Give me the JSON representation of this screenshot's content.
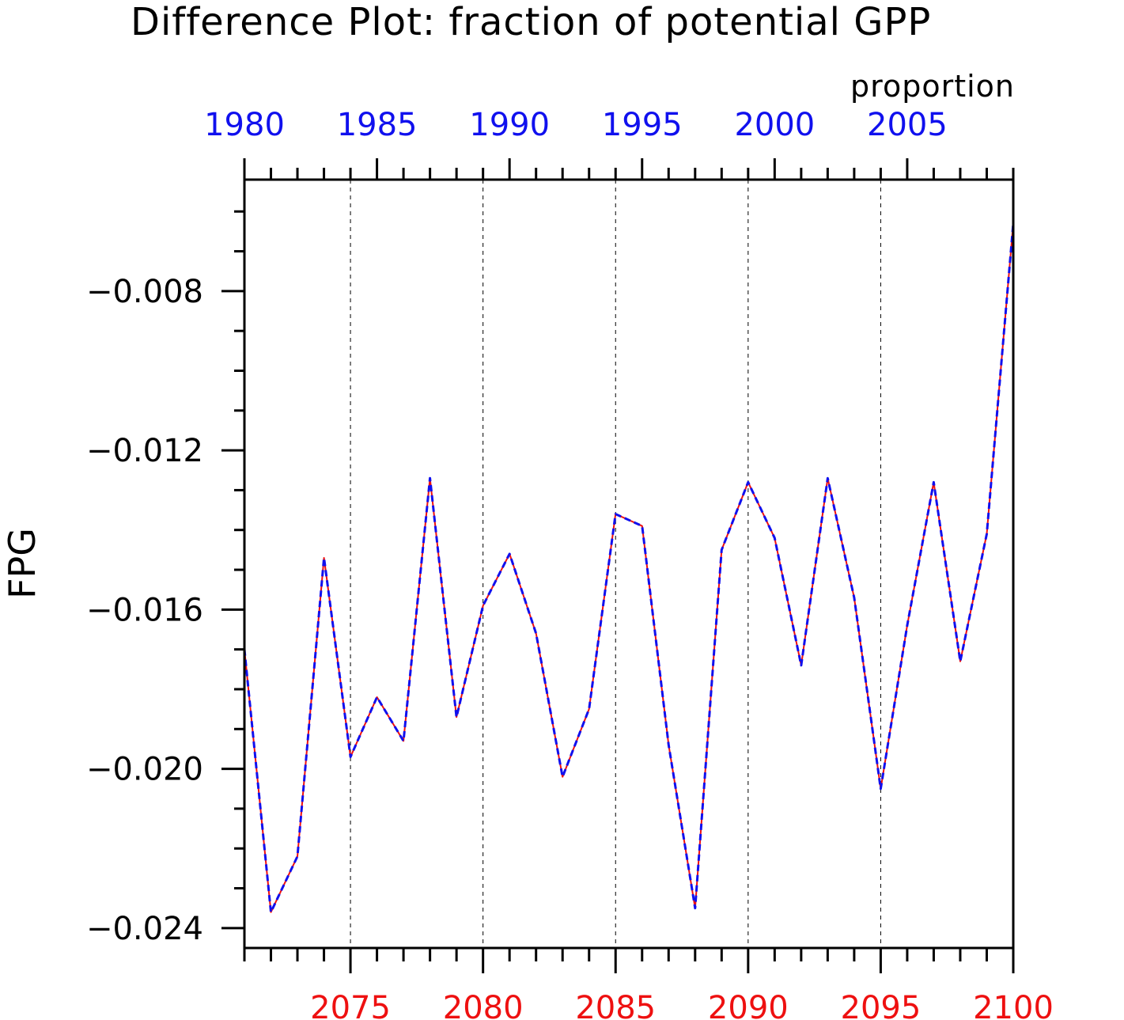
{
  "chart_data": {
    "type": "line",
    "title": "Difference Plot: fraction of potential GPP",
    "units_label": "proportion",
    "ylabel": "FPG",
    "ylim": [
      -0.0245,
      -0.0052
    ],
    "yticks": [
      -0.024,
      -0.02,
      -0.016,
      -0.012,
      -0.008
    ],
    "ytick_labels": [
      "−0.024",
      "−0.020",
      "−0.016",
      "−0.012",
      "−0.008"
    ],
    "x_bottom": {
      "range": [
        2071,
        2100
      ],
      "ticks": [
        2075,
        2080,
        2085,
        2090,
        2095,
        2100
      ],
      "tick_labels": [
        "2075",
        "2080",
        "2085",
        "2090",
        "2095",
        "2100"
      ],
      "color": "#ee1010"
    },
    "x_top": {
      "range": [
        1980,
        2009
      ],
      "ticks": [
        1980,
        1985,
        1990,
        1995,
        2000,
        2005
      ],
      "tick_labels": [
        "1980",
        "1985",
        "1990",
        "1995",
        "2000",
        "2005"
      ],
      "color": "#1010ee"
    },
    "grid": "vertical dashed at major bottom ticks",
    "x": [
      2071,
      2072,
      2073,
      2074,
      2075,
      2076,
      2077,
      2078,
      2079,
      2080,
      2081,
      2082,
      2083,
      2084,
      2085,
      2086,
      2087,
      2088,
      2089,
      2090,
      2091,
      2092,
      2093,
      2094,
      2095,
      2096,
      2097,
      2098,
      2099,
      2100
    ],
    "series": [
      {
        "color": "#ee1010",
        "style": "solid",
        "values": [
          -0.017,
          -0.0236,
          -0.0222,
          -0.0147,
          -0.0197,
          -0.0182,
          -0.0193,
          -0.0127,
          -0.0187,
          -0.0159,
          -0.0146,
          -0.0166,
          -0.0202,
          -0.0185,
          -0.0136,
          -0.0139,
          -0.0194,
          -0.0235,
          -0.0145,
          -0.0128,
          -0.0142,
          -0.0174,
          -0.0127,
          -0.0157,
          -0.0205,
          -0.0164,
          -0.0128,
          -0.0173,
          -0.0141,
          -0.0063
        ]
      },
      {
        "color": "#1010ee",
        "style": "dashed",
        "values": [
          -0.017,
          -0.0236,
          -0.0222,
          -0.0147,
          -0.0197,
          -0.0182,
          -0.0193,
          -0.0127,
          -0.0187,
          -0.0159,
          -0.0146,
          -0.0166,
          -0.0202,
          -0.0185,
          -0.0136,
          -0.0139,
          -0.0194,
          -0.0235,
          -0.0145,
          -0.0128,
          -0.0142,
          -0.0174,
          -0.0127,
          -0.0157,
          -0.0205,
          -0.0164,
          -0.0128,
          -0.0173,
          -0.0141,
          -0.0063
        ]
      }
    ]
  }
}
